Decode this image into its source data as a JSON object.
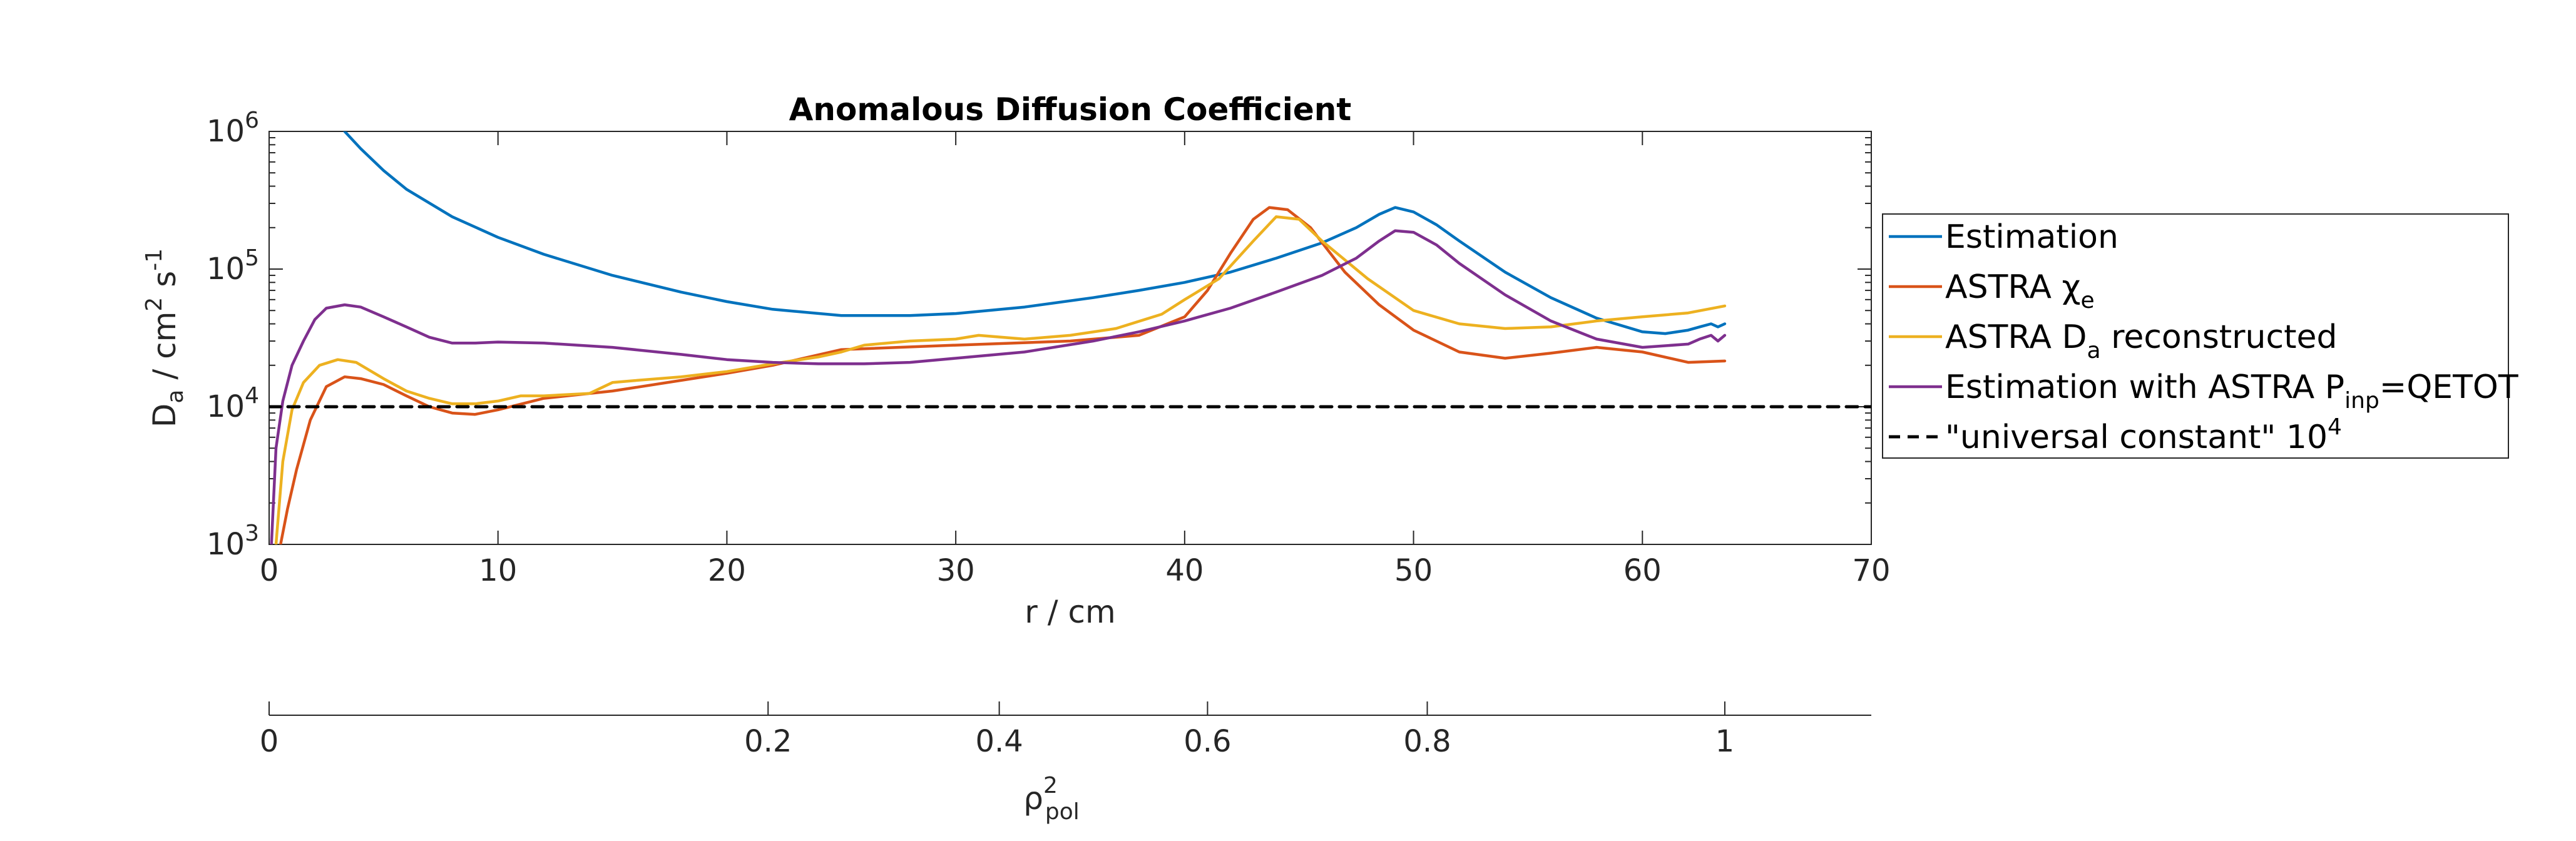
{
  "chart_data": {
    "type": "line",
    "title": "Anomalous Diffusion Coefficient",
    "xlabel": "r / cm",
    "ylabel": {
      "main": "D",
      "sub": "a",
      "rest": " / cm",
      "sup": "2",
      "rest2": " s",
      "sup2": "-1"
    },
    "xlim": [
      0,
      70
    ],
    "ylim": [
      1000,
      1000000
    ],
    "yscale": "log",
    "grid": false,
    "legend_position": "outside-right",
    "x_ticks": [
      "0",
      "10",
      "20",
      "30",
      "40",
      "50",
      "60",
      "70"
    ],
    "y_ticks": [
      {
        "base": "10",
        "exp": "3"
      },
      {
        "base": "10",
        "exp": "4"
      },
      {
        "base": "10",
        "exp": "5"
      },
      {
        "base": "10",
        "exp": "6"
      }
    ],
    "secondary_axis": {
      "label": {
        "main": "ρ",
        "sup": "2",
        "sub": "pol"
      },
      "ticks": [
        {
          "label": "0",
          "r": 0
        },
        {
          "label": "0.2",
          "r": 21.8
        },
        {
          "label": "0.4",
          "r": 31.9
        },
        {
          "label": "0.6",
          "r": 41.0
        },
        {
          "label": "0.8",
          "r": 50.6
        },
        {
          "label": "1",
          "r": 63.6
        }
      ]
    },
    "series": [
      {
        "name": "Estimation",
        "color": "#0072BD",
        "x": [
          3.3,
          4,
          5,
          6,
          8,
          10,
          12,
          15,
          18,
          20,
          22,
          25,
          28,
          30,
          33,
          36,
          38,
          40,
          42,
          44,
          46,
          47.5,
          48.5,
          49.2,
          50,
          51,
          52,
          54,
          56,
          58,
          60,
          61,
          62,
          62.5,
          63,
          63.3,
          63.6
        ],
        "y": [
          1000000,
          750000,
          520000,
          380000,
          240000,
          170000,
          128000,
          90000,
          68000,
          58000,
          51000,
          46000,
          46000,
          47500,
          53000,
          62000,
          70000,
          80000,
          95000,
          120000,
          155000,
          200000,
          250000,
          280000,
          260000,
          210000,
          160000,
          95000,
          62000,
          44000,
          35000,
          34000,
          36000,
          38000,
          40000,
          38000,
          40000
        ]
      },
      {
        "name": "ASTRA χ_e",
        "label_parts": {
          "main": "ASTRA ",
          "sym": "χ",
          "sub": "e"
        },
        "color": "#D95319",
        "x": [
          0.5,
          0.8,
          1.2,
          1.8,
          2.5,
          3.3,
          4,
          5,
          6,
          7,
          8,
          9,
          10,
          12,
          15,
          20,
          22,
          25,
          30,
          35,
          38,
          40,
          41,
          42,
          43,
          43.7,
          44.5,
          45.5,
          47,
          48.5,
          50,
          52,
          54,
          56,
          58,
          60,
          62,
          63.6
        ],
        "y": [
          1000,
          1800,
          3500,
          8000,
          14000,
          16500,
          16000,
          14500,
          12000,
          10000,
          9000,
          8800,
          9500,
          11500,
          13000,
          17500,
          20000,
          26000,
          28000,
          30000,
          33000,
          45000,
          70000,
          130000,
          230000,
          280000,
          270000,
          200000,
          95000,
          55000,
          36000,
          25000,
          22500,
          24500,
          27000,
          25000,
          21000,
          21500
        ]
      },
      {
        "name": "ASTRA D_a reconstructed",
        "label_parts": {
          "main": "ASTRA D",
          "sub": "a",
          "rest": " reconstructed"
        },
        "color": "#EDB120",
        "x": [
          0.3,
          0.6,
          1,
          1.5,
          2.2,
          3,
          3.8,
          5,
          6,
          7,
          8,
          9,
          10,
          11,
          12,
          14,
          15,
          16,
          18,
          20,
          22,
          24,
          25,
          26,
          28,
          30,
          31,
          33,
          35,
          37,
          39,
          40,
          41.5,
          43,
          44,
          45,
          46,
          48,
          50,
          52,
          54,
          56,
          58,
          60,
          62,
          63.6
        ],
        "y": [
          1000,
          4000,
          9500,
          15000,
          20000,
          22000,
          21000,
          16000,
          13000,
          11500,
          10500,
          10500,
          11000,
          12000,
          12000,
          12500,
          15000,
          15500,
          16500,
          18000,
          20500,
          23000,
          25000,
          28000,
          30000,
          31000,
          33000,
          31000,
          33000,
          37000,
          47000,
          60000,
          85000,
          160000,
          240000,
          230000,
          160000,
          85000,
          50000,
          40000,
          37000,
          38000,
          42000,
          45000,
          48000,
          54000
        ]
      },
      {
        "name": "Estimation with ASTRA P_inp=QETOT",
        "label_parts": {
          "main": "Estimation with ASTRA P",
          "sub": "inp",
          "rest": "=QETOT"
        },
        "color": "#7E2F8E",
        "x": [
          0.1,
          0.3,
          0.6,
          1,
          1.5,
          2,
          2.5,
          3.3,
          4,
          5,
          6,
          7,
          8,
          9,
          10,
          12,
          15,
          18,
          20,
          22,
          24,
          26,
          28,
          30,
          33,
          36,
          38,
          40,
          42,
          44,
          46,
          47.5,
          48.5,
          49.2,
          50,
          51,
          52,
          54,
          56,
          58,
          60,
          62,
          62.5,
          63,
          63.3,
          63.6
        ],
        "y": [
          1000,
          5000,
          11000,
          20000,
          30000,
          43000,
          52000,
          55000,
          53000,
          45000,
          38000,
          32000,
          29000,
          29000,
          29500,
          29000,
          27000,
          24000,
          22000,
          21000,
          20500,
          20500,
          21000,
          22500,
          25000,
          30000,
          35000,
          42000,
          52000,
          68000,
          90000,
          120000,
          160000,
          190000,
          185000,
          150000,
          110000,
          65000,
          42000,
          31000,
          27000,
          28500,
          31000,
          33000,
          30000,
          33000
        ]
      },
      {
        "name": "\"universal constant\" 10^4",
        "label_parts": {
          "main": "\"universal constant\" 10",
          "sup": "4"
        },
        "color": "#000000",
        "dashed": true,
        "x": [
          0,
          70
        ],
        "y": [
          10000,
          10000
        ]
      }
    ]
  }
}
